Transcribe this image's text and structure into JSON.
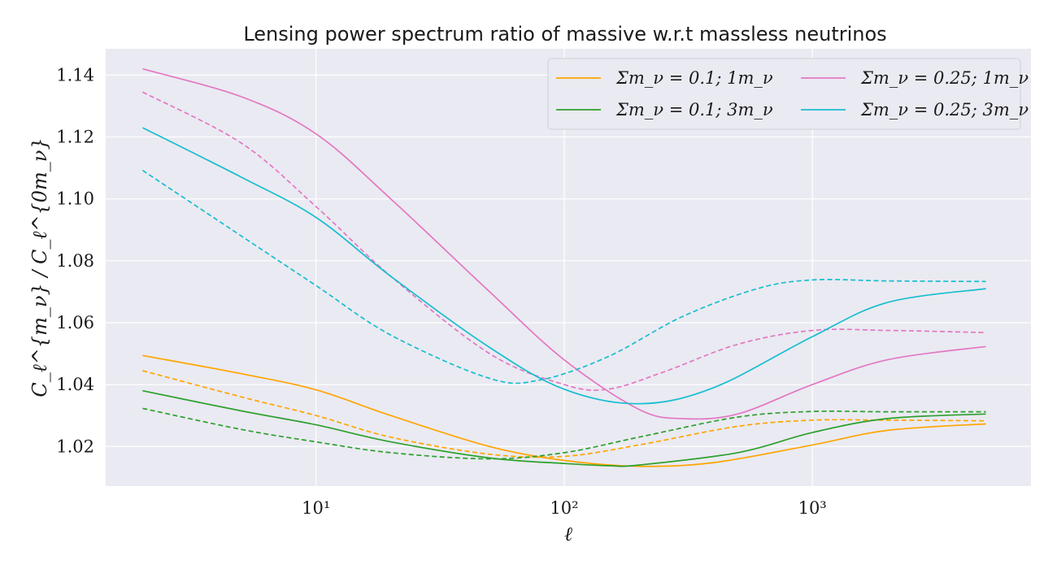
{
  "chart_data": {
    "type": "line",
    "title": "Lensing power spectrum ratio of massive w.r.t massless neutrinos",
    "xlabel": "ℓ",
    "ylabel": "C_ℓ^{m_ν} / C_ℓ^{0m_ν}",
    "x_scale": "log",
    "xlim": [
      1.42,
      7600
    ],
    "ylim": [
      1.0072,
      1.1485
    ],
    "x_ticks": [
      {
        "value": 10,
        "label": "10¹"
      },
      {
        "value": 100,
        "label": "10²"
      },
      {
        "value": 1000,
        "label": "10³"
      }
    ],
    "y_ticks": [
      1.02,
      1.04,
      1.06,
      1.08,
      1.1,
      1.12,
      1.14
    ],
    "y_tick_labels": [
      "1.02",
      "1.04",
      "1.06",
      "1.08",
      "1.10",
      "1.12",
      "1.14"
    ],
    "grid": true,
    "legend": {
      "placement": "top-right",
      "columns": 2,
      "entries": [
        {
          "label": "Σm_ν = 0.1; 1m_ν",
          "color": "#ffa500"
        },
        {
          "label": "Σm_ν = 0.1; 3m_ν",
          "color": "#2ca02c"
        },
        {
          "label": "Σm_ν = 0.25; 1m_ν",
          "color": "#e377c2"
        },
        {
          "label": "Σm_ν = 0.25; 3m_ν",
          "color": "#17becf"
        }
      ]
    },
    "series": [
      {
        "color": "#ffa500",
        "style": "solid",
        "points": [
          [
            2,
            1.0494
          ],
          [
            5,
            1.0435
          ],
          [
            10,
            1.0383
          ],
          [
            20,
            1.03
          ],
          [
            50,
            1.02
          ],
          [
            100,
            1.0155
          ],
          [
            200,
            1.0136
          ],
          [
            400,
            1.0148
          ],
          [
            1000,
            1.0205
          ],
          [
            2000,
            1.0252
          ],
          [
            5000,
            1.0273
          ]
        ]
      },
      {
        "color": "#ffa500",
        "style": "dashed",
        "points": [
          [
            2,
            1.0445
          ],
          [
            5,
            1.036
          ],
          [
            10,
            1.03
          ],
          [
            20,
            1.023
          ],
          [
            50,
            1.0175
          ],
          [
            100,
            1.0168
          ],
          [
            200,
            1.0205
          ],
          [
            500,
            1.0265
          ],
          [
            1000,
            1.0285
          ],
          [
            2000,
            1.0285
          ],
          [
            5000,
            1.0283
          ]
        ]
      },
      {
        "color": "#2ca02c",
        "style": "solid",
        "points": [
          [
            2,
            1.038
          ],
          [
            5,
            1.0315
          ],
          [
            10,
            1.027
          ],
          [
            20,
            1.0215
          ],
          [
            50,
            1.0163
          ],
          [
            100,
            1.0145
          ],
          [
            150,
            1.0138
          ],
          [
            200,
            1.014
          ],
          [
            500,
            1.018
          ],
          [
            1000,
            1.0245
          ],
          [
            2000,
            1.029
          ],
          [
            5000,
            1.0305
          ]
        ]
      },
      {
        "color": "#2ca02c",
        "style": "dashed",
        "points": [
          [
            2,
            1.0323
          ],
          [
            5,
            1.0255
          ],
          [
            10,
            1.0215
          ],
          [
            20,
            1.018
          ],
          [
            50,
            1.016
          ],
          [
            100,
            1.018
          ],
          [
            200,
            1.023
          ],
          [
            500,
            1.0295
          ],
          [
            1000,
            1.0313
          ],
          [
            2000,
            1.0312
          ],
          [
            5000,
            1.0312
          ]
        ]
      },
      {
        "color": "#e377c2",
        "style": "solid",
        "points": [
          [
            2,
            1.142
          ],
          [
            5,
            1.133
          ],
          [
            10,
            1.121
          ],
          [
            20,
            1.1
          ],
          [
            50,
            1.07
          ],
          [
            100,
            1.048
          ],
          [
            200,
            1.032
          ],
          [
            300,
            1.029
          ],
          [
            500,
            1.0305
          ],
          [
            1000,
            1.04
          ],
          [
            2000,
            1.048
          ],
          [
            5000,
            1.0523
          ]
        ]
      },
      {
        "color": "#e377c2",
        "style": "dashed",
        "points": [
          [
            2,
            1.1345
          ],
          [
            5,
            1.118
          ],
          [
            10,
            1.0975
          ],
          [
            20,
            1.075
          ],
          [
            50,
            1.05
          ],
          [
            100,
            1.04
          ],
          [
            150,
            1.0385
          ],
          [
            250,
            1.044
          ],
          [
            500,
            1.053
          ],
          [
            1000,
            1.0575
          ],
          [
            2000,
            1.0575
          ],
          [
            5000,
            1.0568
          ]
        ]
      },
      {
        "color": "#17becf",
        "style": "solid",
        "points": [
          [
            2,
            1.123
          ],
          [
            5,
            1.107
          ],
          [
            10,
            1.094
          ],
          [
            20,
            1.075
          ],
          [
            50,
            1.052
          ],
          [
            100,
            1.0385
          ],
          [
            200,
            1.0338
          ],
          [
            400,
            1.039
          ],
          [
            1000,
            1.0555
          ],
          [
            2000,
            1.0665
          ],
          [
            5000,
            1.071
          ]
        ]
      },
      {
        "color": "#17becf",
        "style": "dashed",
        "points": [
          [
            2,
            1.1092
          ],
          [
            5,
            1.088
          ],
          [
            10,
            1.072
          ],
          [
            20,
            1.056
          ],
          [
            50,
            1.042
          ],
          [
            80,
            1.0415
          ],
          [
            150,
            1.049
          ],
          [
            300,
            1.062
          ],
          [
            600,
            1.071
          ],
          [
            1000,
            1.0738
          ],
          [
            2000,
            1.0735
          ],
          [
            5000,
            1.0733
          ]
        ]
      }
    ]
  }
}
